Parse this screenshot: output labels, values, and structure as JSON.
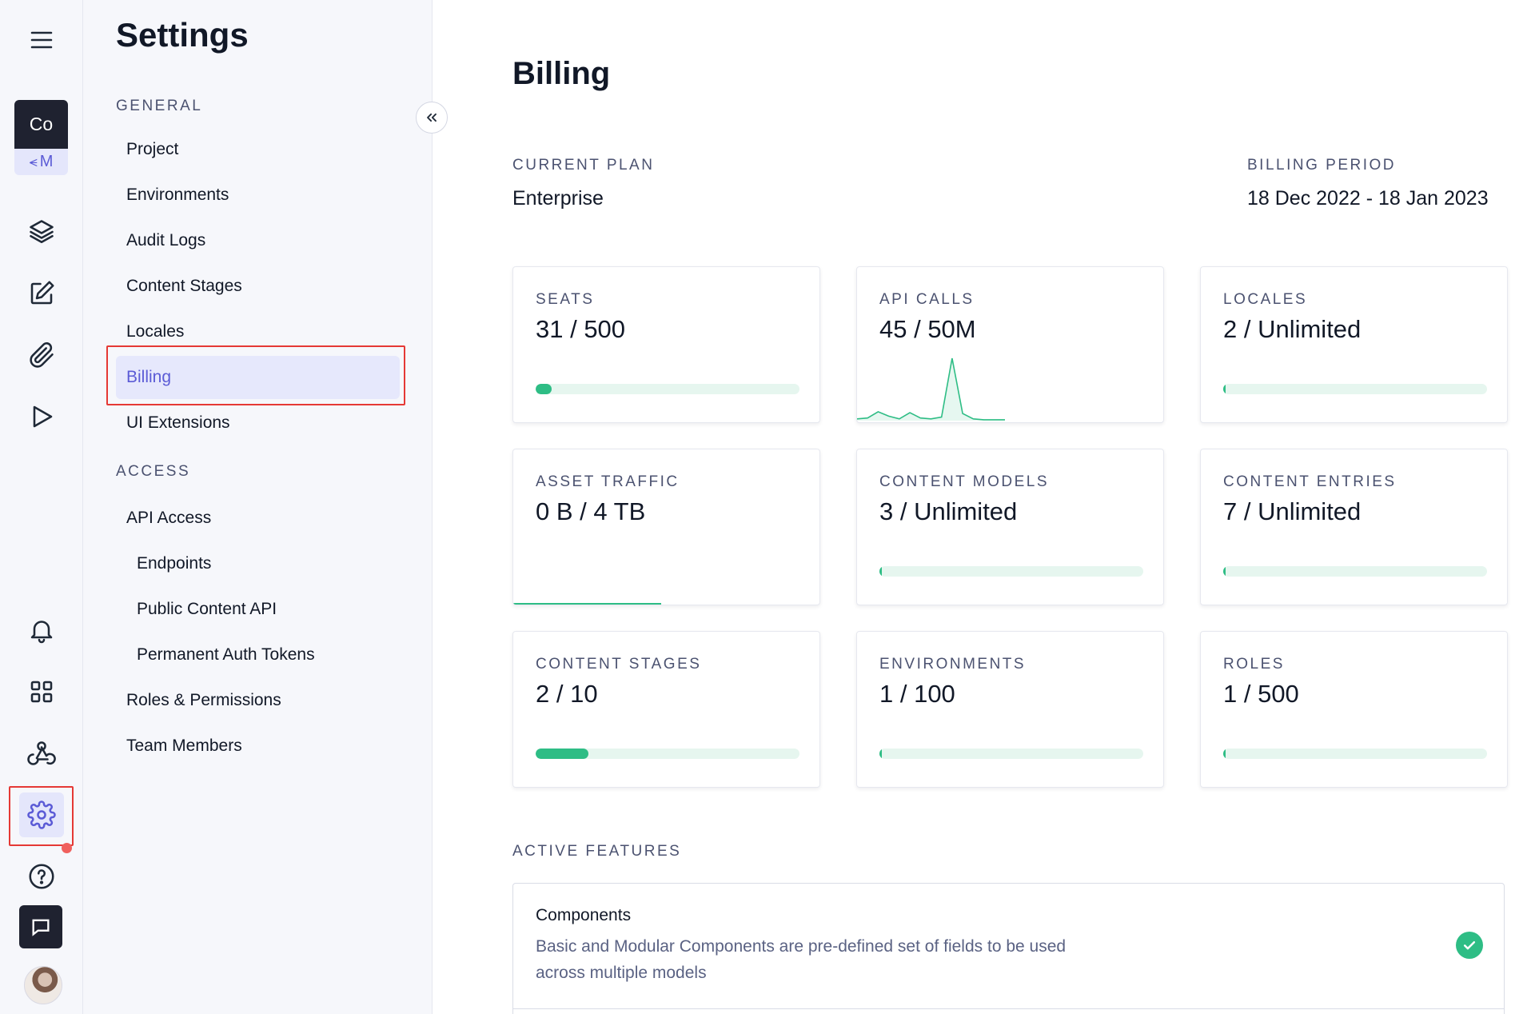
{
  "rail": {
    "project_initials": "Co",
    "project_env_tag": "M",
    "icons": [
      "menu-icon",
      "layers-icon",
      "edit-icon",
      "paperclip-icon",
      "play-icon",
      "bell-icon",
      "grid-icon",
      "webhook-icon",
      "gear-icon",
      "help-icon",
      "chat-icon"
    ],
    "accent": "#5b5bd6",
    "highlight": "#e53935"
  },
  "sidebar": {
    "title": "Settings",
    "general_label": "GENERAL",
    "general_items": [
      {
        "label": "Project"
      },
      {
        "label": "Environments"
      },
      {
        "label": "Audit Logs"
      },
      {
        "label": "Content Stages"
      },
      {
        "label": "Locales"
      },
      {
        "label": "Billing",
        "active": true
      },
      {
        "label": "UI Extensions"
      }
    ],
    "access_label": "ACCESS",
    "access_items": [
      {
        "label": "API Access"
      },
      {
        "label": "Endpoints",
        "indent": true
      },
      {
        "label": "Public Content API",
        "indent": true
      },
      {
        "label": "Permanent Auth Tokens",
        "indent": true
      },
      {
        "label": "Roles & Permissions"
      },
      {
        "label": "Team Members"
      }
    ]
  },
  "billing": {
    "title": "Billing",
    "current_plan_label": "CURRENT PLAN",
    "current_plan": "Enterprise",
    "billing_period_label": "BILLING PERIOD",
    "billing_period": "18 Dec 2022 - 18 Jan 2023",
    "usage": [
      {
        "label": "SEATS",
        "value": "31 / 500",
        "fraction": 0.062,
        "display": "bar"
      },
      {
        "label": "API CALLS",
        "value": "45 / 50M",
        "display": "spark",
        "spark": [
          2,
          3,
          10,
          5,
          2,
          9,
          3,
          2,
          4,
          70,
          8,
          2,
          1,
          1,
          1
        ]
      },
      {
        "label": "LOCALES",
        "value": "2 / Unlimited",
        "fraction": 0.005,
        "display": "bar"
      },
      {
        "label": "ASSET TRAFFIC",
        "value": "0 B / 4 TB",
        "display": "line"
      },
      {
        "label": "CONTENT MODELS",
        "value": "3 / Unlimited",
        "fraction": 0.005,
        "display": "bar"
      },
      {
        "label": "CONTENT ENTRIES",
        "value": "7 / Unlimited",
        "fraction": 0.005,
        "display": "bar"
      },
      {
        "label": "CONTENT STAGES",
        "value": "2 / 10",
        "fraction": 0.2,
        "display": "bar"
      },
      {
        "label": "ENVIRONMENTS",
        "value": "1 / 100",
        "fraction": 0.01,
        "display": "bar"
      },
      {
        "label": "ROLES",
        "value": "1 / 500",
        "fraction": 0.002,
        "display": "bar"
      }
    ],
    "active_features_label": "ACTIVE FEATURES",
    "features": [
      {
        "name": "Components",
        "description": "Basic and Modular Components are pre-defined set of fields to be used across multiple models",
        "enabled": true
      }
    ],
    "accent_green": "#2ebd85",
    "track_green": "#e6f6ef"
  }
}
